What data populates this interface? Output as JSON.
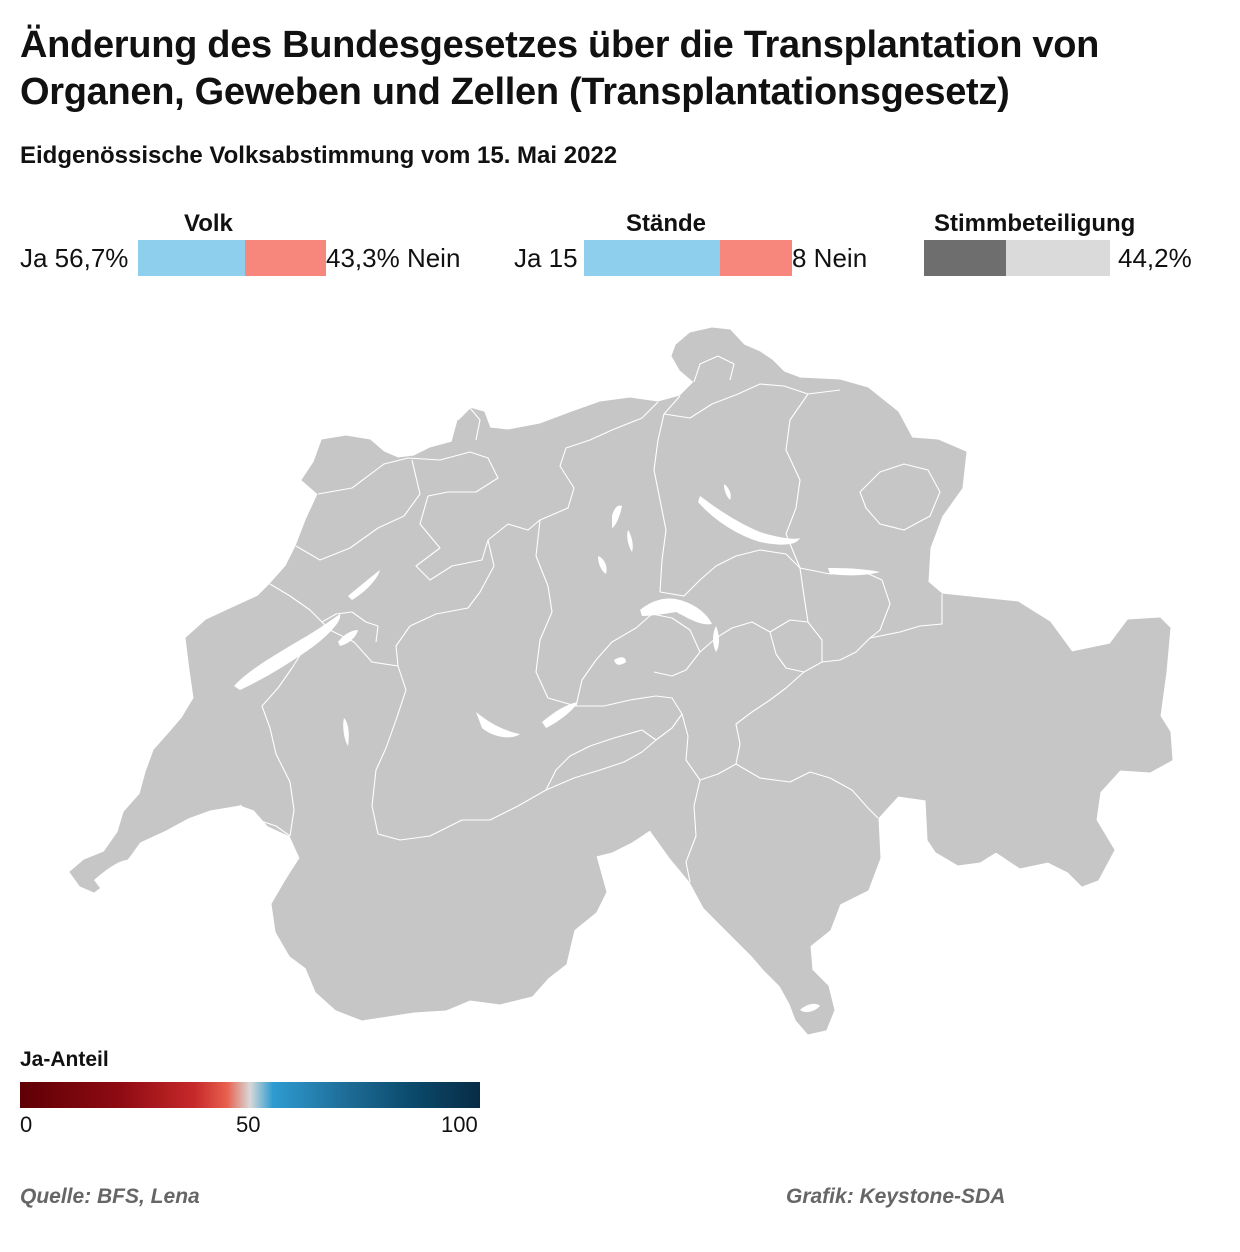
{
  "title": "Änderung des Bundesgesetzes über die Transplantation von Organen, Geweben und Zellen (Transplantationsgesetz)",
  "subtitle": "Eidgenössische Volksabstimmung vom 15. Mai 2022",
  "volk": {
    "label": "Volk",
    "ja_text": "Ja 56,7%",
    "nein_text": "43,3% Nein",
    "ja_share": 0.567,
    "nein_share": 0.433,
    "ja_color": "#8ecfee",
    "nein_color": "#f7877c"
  },
  "staende": {
    "label": "Stände",
    "ja_text": "Ja 15",
    "nein_text": "8 Nein",
    "ja_count": 15,
    "nein_count": 8,
    "ja_color": "#8ecfee",
    "nein_color": "#f7877c"
  },
  "stimmbeteiligung": {
    "label": "Stimmbeteiligung",
    "value_text": "44,2%",
    "share": 0.442,
    "fill_color": "#6e6e6e",
    "rest_color": "#dadada"
  },
  "map": {
    "land_color": "#c6c6c6",
    "border_color": "#ffffff",
    "lake_color": "#ffffff"
  },
  "legend": {
    "title": "Ja-Anteil",
    "ticks": [
      "0",
      "50",
      "100"
    ]
  },
  "footer": {
    "source": "Quelle: BFS, Lena",
    "credit": "Grafik: Keystone-SDA"
  }
}
